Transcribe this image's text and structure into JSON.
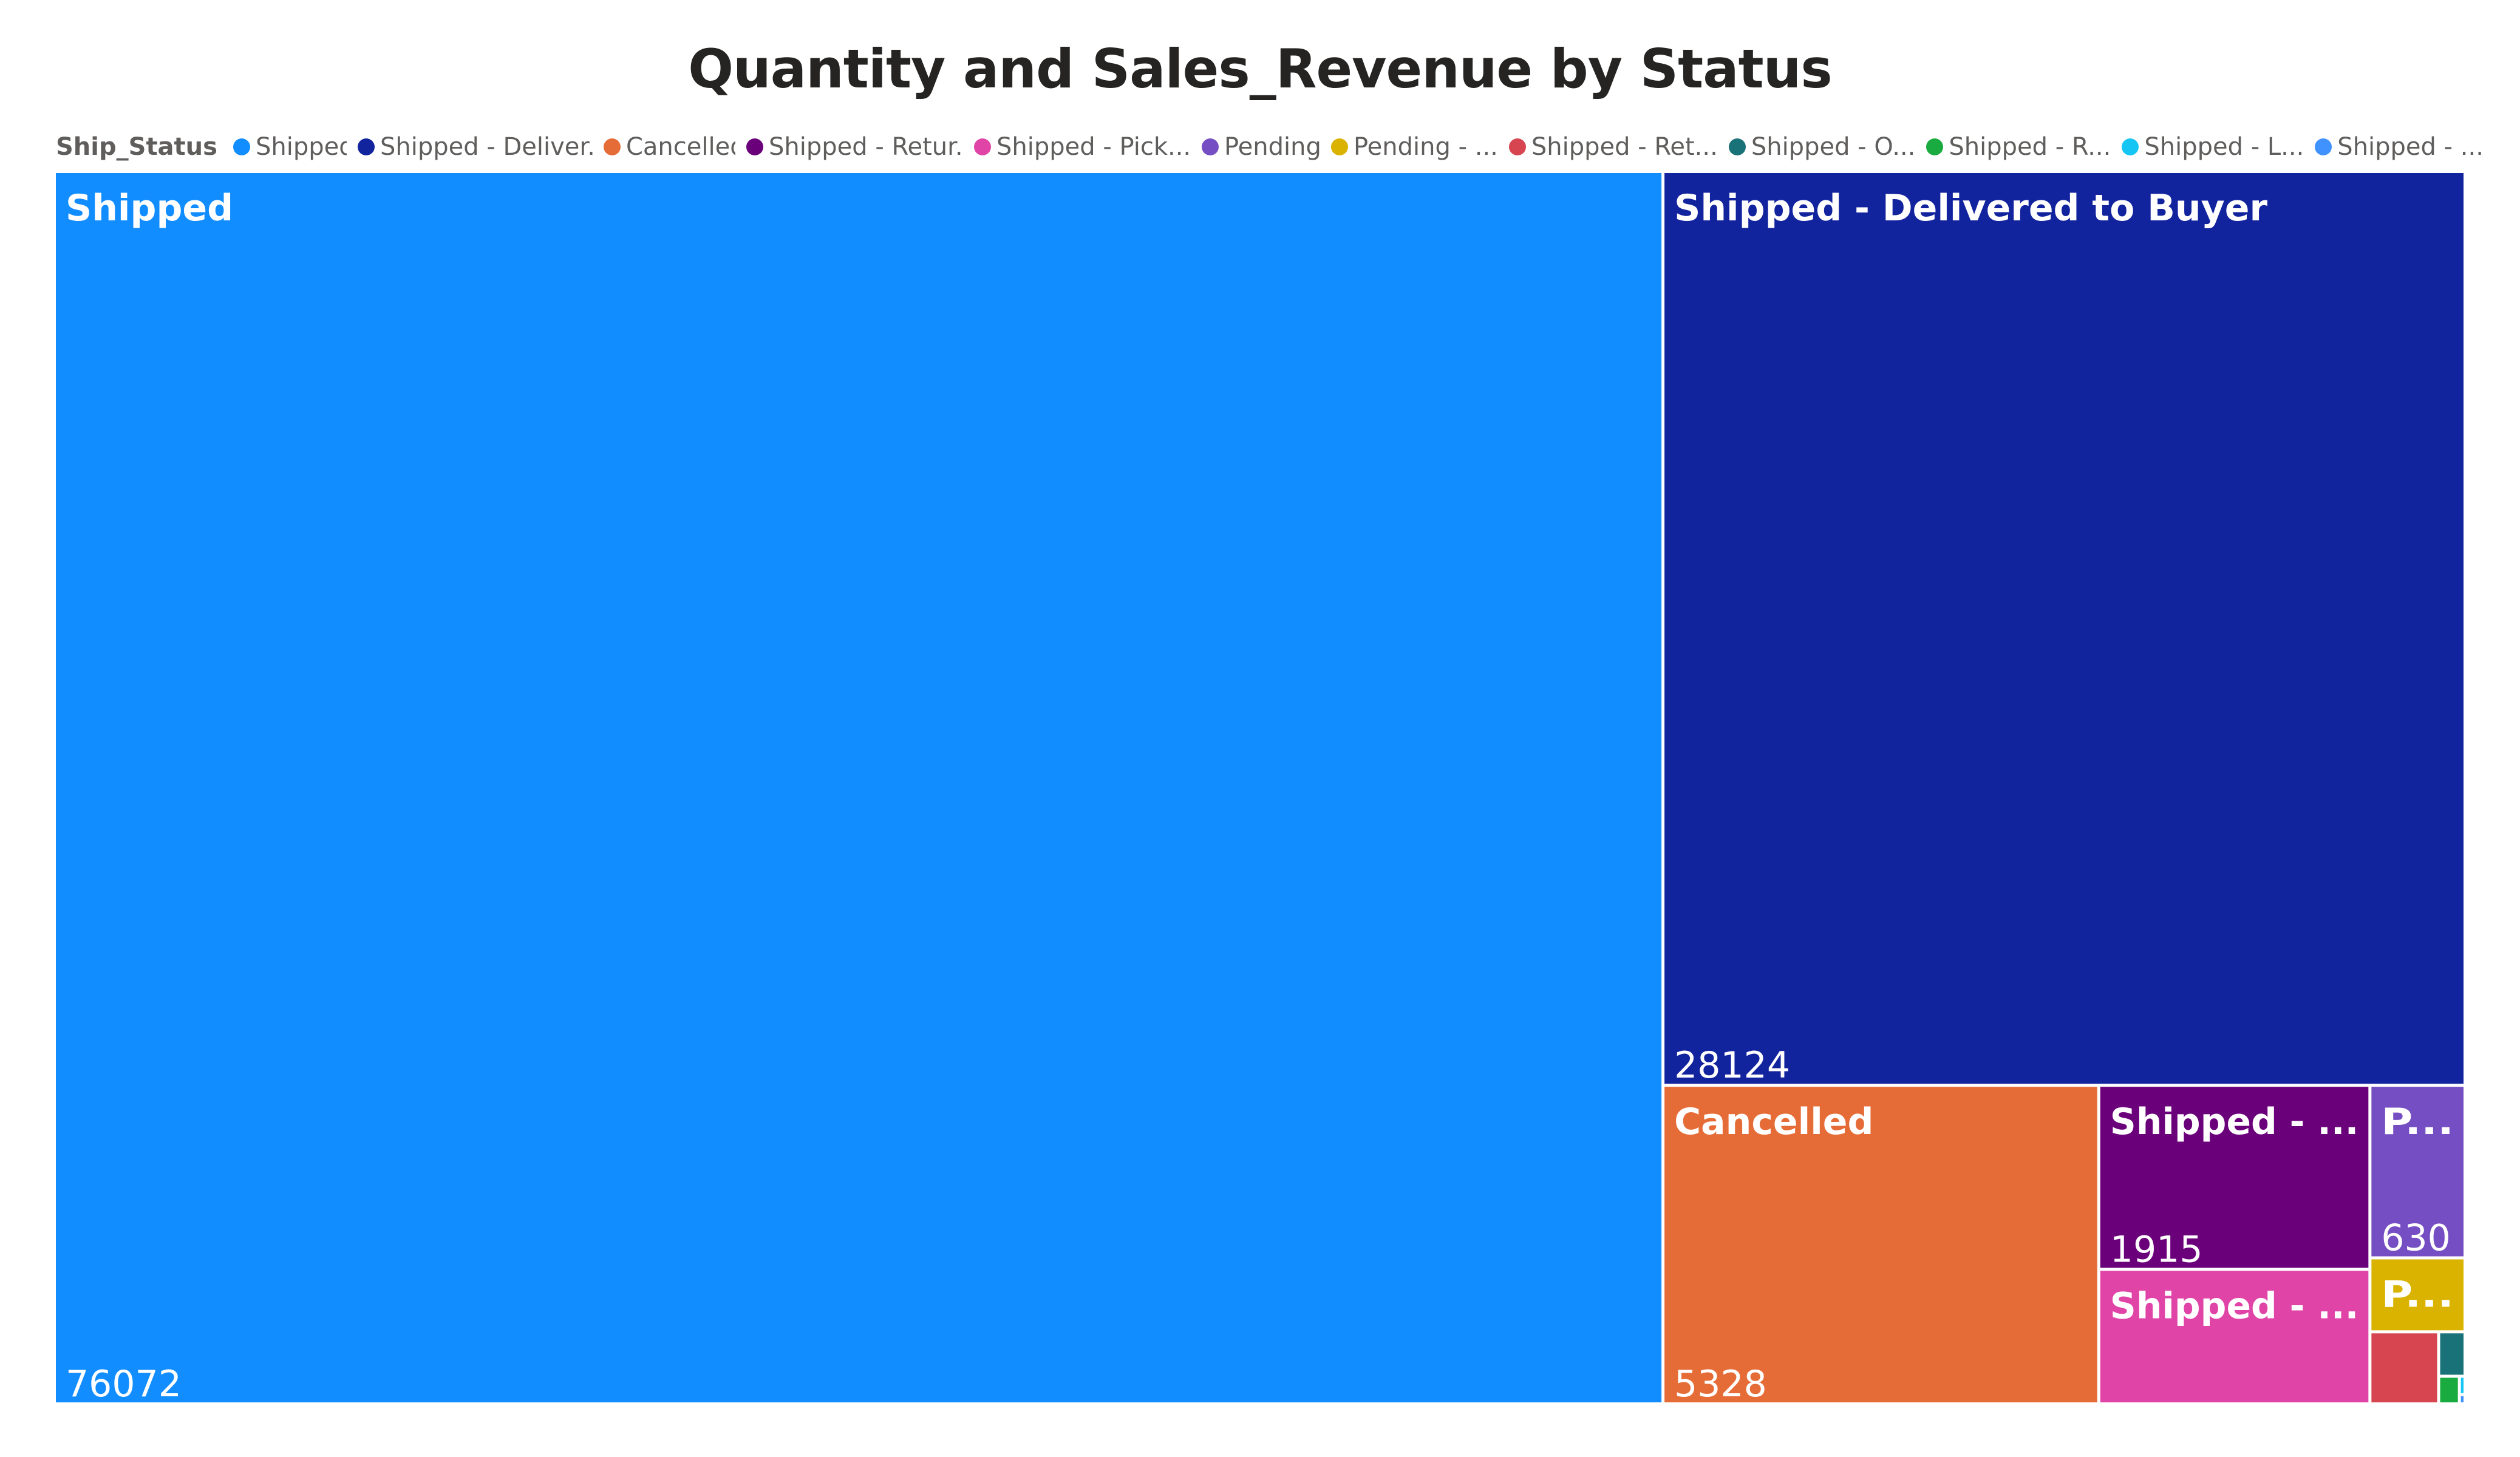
{
  "chart_data": {
    "type": "treemap",
    "title": "Quantity and Sales_Revenue by Status",
    "legend": {
      "title": "Ship_Status",
      "placement": "top-left",
      "entries": [
        {
          "label": "Shipped",
          "color": "#118DFF"
        },
        {
          "label": "Shipped - Deliver...",
          "color": "#12239E"
        },
        {
          "label": "Cancelled",
          "color": "#E66C37"
        },
        {
          "label": "Shipped - Retur...",
          "color": "#6B007B"
        },
        {
          "label": "Shipped - Pick...",
          "color": "#E044A7"
        },
        {
          "label": "Pending",
          "color": "#744EC2"
        },
        {
          "label": "Pending - ...",
          "color": "#D9B300"
        },
        {
          "label": "Shipped - Ret...",
          "color": "#D64550"
        },
        {
          "label": "Shipped - O...",
          "color": "#197278"
        },
        {
          "label": "Shipped - R...",
          "color": "#1AAB40"
        },
        {
          "label": "Shipped - L...",
          "color": "#15C6F4"
        },
        {
          "label": "Shipped - ...",
          "color": "#4092FF"
        }
      ]
    },
    "tiles": [
      {
        "label": "Shipped",
        "value": 76072,
        "value_label": "76072",
        "color": "#118DFF"
      },
      {
        "label": "Shipped - Delivered to Buyer",
        "value": 28124,
        "value_label": "28124",
        "color": "#12239E"
      },
      {
        "label": "Cancelled",
        "value": 5328,
        "value_label": "5328",
        "color": "#E66C37"
      },
      {
        "label": "Shipped - ...",
        "value": 1915,
        "value_label": "1915",
        "color": "#6B007B"
      },
      {
        "label": "Shipped - ...",
        "value": 1400,
        "value_label": "",
        "color": "#E044A7"
      },
      {
        "label": "P...",
        "value": 630,
        "value_label": "630",
        "color": "#744EC2"
      },
      {
        "label": "P...",
        "value": 270,
        "value_label": "",
        "color": "#D9B300"
      },
      {
        "label": "",
        "value": 190,
        "value_label": "",
        "color": "#D64550"
      },
      {
        "label": "",
        "value": 45,
        "value_label": "",
        "color": "#197278"
      },
      {
        "label": "",
        "value": 22,
        "value_label": "",
        "color": "#1AAB40"
      },
      {
        "label": "",
        "value": 4,
        "value_label": "",
        "color": "#15C6F4"
      },
      {
        "label": "",
        "value": 2,
        "value_label": "",
        "color": "#4092FF"
      }
    ]
  }
}
